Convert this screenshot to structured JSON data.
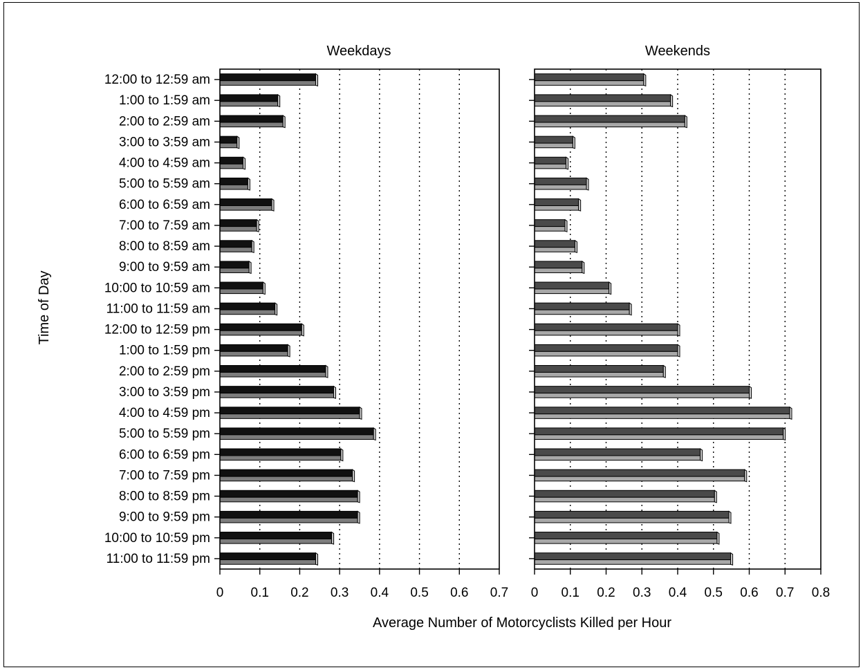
{
  "chart_data": {
    "type": "bar",
    "orientation": "horizontal",
    "ylabel": "Time of Day",
    "xlabel": "Average Number of Motorcyclists Killed per Hour",
    "categories": [
      "12:00 to 12:59 am",
      "1:00 to 1:59 am",
      "2:00 to 2:59 am",
      "3:00 to 3:59 am",
      "4:00 to 4:59 am",
      "5:00 to 5:59 am",
      "6:00 to 6:59 am",
      "7:00 to 7:59 am",
      "8:00 to 8:59 am",
      "9:00 to 9:59 am",
      "10:00 to 10:59 am",
      "11:00 to 11:59 am",
      "12:00 to 12:59 pm",
      "1:00 to 1:59 pm",
      "2:00 to 2:59 pm",
      "3:00 to 3:59 pm",
      "4:00 to 4:59 pm",
      "5:00 to 5:59 pm",
      "6:00 to 6:59 pm",
      "7:00 to 7:59 pm",
      "8:00 to 8:59 pm",
      "9:00 to 9:59 pm",
      "10:00 to 10:59 pm",
      "11:00 to 11:59 pm"
    ],
    "panels": [
      {
        "title": "Weekdays",
        "color": "#111111",
        "xlim": [
          0,
          0.7
        ],
        "xticks": [
          0,
          0.1,
          0.2,
          0.3,
          0.4,
          0.5,
          0.6,
          0.7
        ],
        "grid": "vertical dotted",
        "values": [
          0.24,
          0.145,
          0.158,
          0.043,
          0.058,
          0.07,
          0.13,
          0.092,
          0.08,
          0.073,
          0.108,
          0.138,
          0.205,
          0.17,
          0.265,
          0.285,
          0.35,
          0.385,
          0.303,
          0.332,
          0.345,
          0.345,
          0.28,
          0.24
        ]
      },
      {
        "title": "Weekends",
        "color": "#4a4a4a",
        "xlim": [
          0,
          0.8
        ],
        "xticks": [
          0,
          0.1,
          0.2,
          0.3,
          0.4,
          0.5,
          0.6,
          0.7,
          0.8
        ],
        "grid": "vertical dotted",
        "values": [
          0.305,
          0.38,
          0.42,
          0.107,
          0.088,
          0.145,
          0.123,
          0.085,
          0.113,
          0.133,
          0.208,
          0.265,
          0.4,
          0.4,
          0.36,
          0.6,
          0.713,
          0.695,
          0.463,
          0.587,
          0.503,
          0.543,
          0.51,
          0.548
        ]
      }
    ]
  }
}
